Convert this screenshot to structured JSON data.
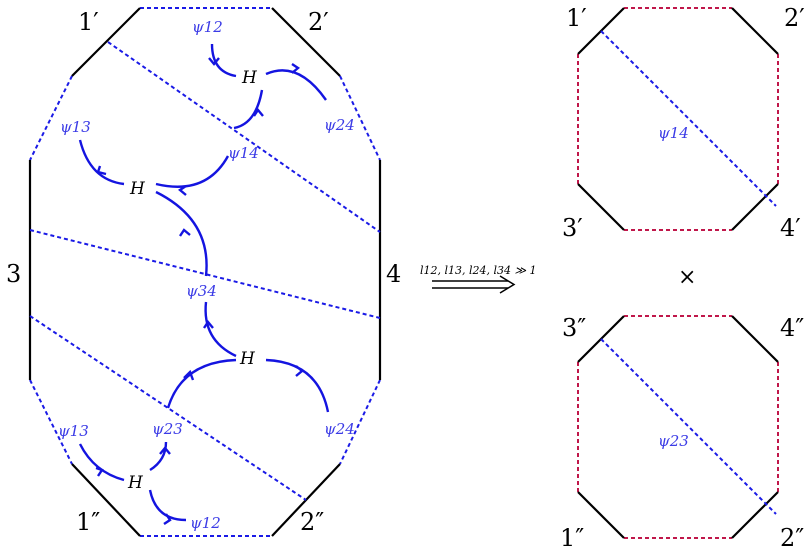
{
  "left_figure": {
    "boundary_labels": {
      "top_left": "1′",
      "top_right": "2′",
      "left": "3",
      "right": "4",
      "bottom_left": "1″",
      "bottom_right": "2″"
    },
    "fields": {
      "psi12_top": "ψ12",
      "psi13_top": "ψ13",
      "psi24_top": "ψ24",
      "psi14": "ψ14",
      "psi34": "ψ34",
      "psi23": "ψ23",
      "psi13_bottom": "ψ13",
      "psi24_bottom": "ψ24",
      "psi12_bottom": "ψ12"
    },
    "vertex_symbol": "H"
  },
  "limit_arrow": {
    "condition": "l12, l13, l24, l34 ≫ 1"
  },
  "right_top": {
    "labels": {
      "top_left": "1′",
      "top_right": "2′",
      "bottom_left": "3′",
      "bottom_right": "4′"
    },
    "field": "ψ14"
  },
  "product_symbol": "×",
  "right_bottom": {
    "labels": {
      "top_left": "3″",
      "top_right": "4″",
      "bottom_left": "1″",
      "bottom_right": "2″"
    },
    "field": "ψ23"
  },
  "colors": {
    "boundary_solid": "#000000",
    "propagator": "#1414e0",
    "dashed_left": "#1a1ae6",
    "dashed_right": "#c0174a",
    "field_label": "#3b3be6"
  }
}
